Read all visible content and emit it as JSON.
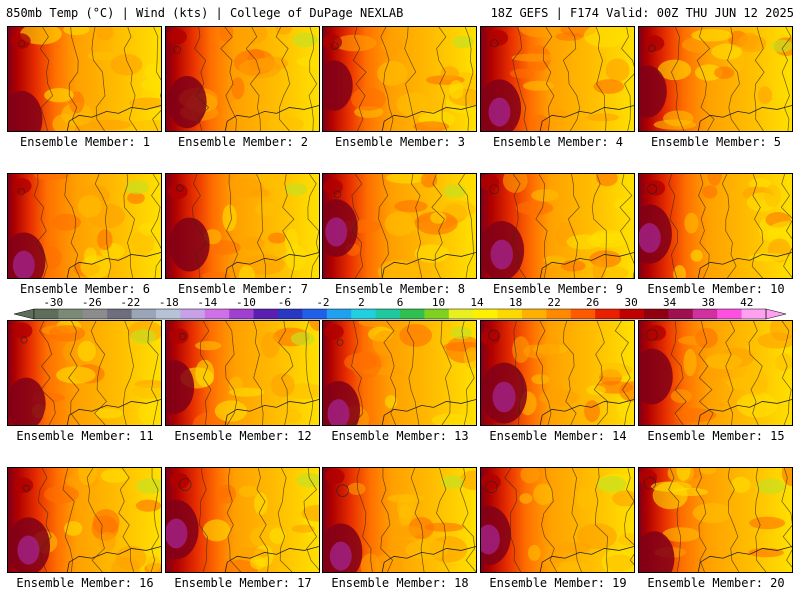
{
  "header": {
    "left": "850mb Temp (°C) | Wind (kts) | College of DuPage NEXLAB",
    "right": "18Z GEFS | F174 Valid: 00Z THU JUN 12 2025"
  },
  "members": [
    {
      "label": "Ensemble Member: 1",
      "west": 0.75,
      "hot": 0.8,
      "cool": 0.1
    },
    {
      "label": "Ensemble Member: 2",
      "west": 0.7,
      "hot": 0.7,
      "cool": 0.25
    },
    {
      "label": "Ensemble Member: 3",
      "west": 0.65,
      "hot": 0.65,
      "cool": 0.15
    },
    {
      "label": "Ensemble Member: 4",
      "west": 0.8,
      "hot": 0.85,
      "cool": 0.05
    },
    {
      "label": "Ensemble Member: 5",
      "west": 0.7,
      "hot": 0.7,
      "cool": 0.15
    },
    {
      "label": "Ensemble Member: 6",
      "west": 0.55,
      "hot": 0.85,
      "cool": 0.2
    },
    {
      "label": "Ensemble Member: 7",
      "west": 0.75,
      "hot": 0.75,
      "cool": 0.15
    },
    {
      "label": "Ensemble Member: 8",
      "west": 0.7,
      "hot": 0.85,
      "cool": 0.2
    },
    {
      "label": "Ensemble Member: 9",
      "west": 0.85,
      "hot": 0.9,
      "cool": 0.1
    },
    {
      "label": "Ensemble Member: 10",
      "west": 0.75,
      "hot": 0.9,
      "cool": 0.1
    },
    {
      "label": "Ensemble Member: 11",
      "west": 0.55,
      "hot": 0.7,
      "cool": 0.25
    },
    {
      "label": "Ensemble Member: 12",
      "west": 0.7,
      "hot": 0.75,
      "cool": 0.2
    },
    {
      "label": "Ensemble Member: 13",
      "west": 0.6,
      "hot": 0.85,
      "cool": 0.15
    },
    {
      "label": "Ensemble Member: 14",
      "west": 0.85,
      "hot": 0.95,
      "cool": 0.1
    },
    {
      "label": "Ensemble Member: 15",
      "west": 0.7,
      "hot": 0.8,
      "cool": 0.1
    },
    {
      "label": "Ensemble Member: 16",
      "west": 0.8,
      "hot": 0.85,
      "cool": 0.3
    },
    {
      "label": "Ensemble Member: 17",
      "west": 0.85,
      "hot": 0.9,
      "cool": 0.25
    },
    {
      "label": "Ensemble Member: 18",
      "west": 0.75,
      "hot": 0.85,
      "cool": 0.2
    },
    {
      "label": "Ensemble Member: 19",
      "west": 0.7,
      "hot": 0.9,
      "cool": 0.35
    },
    {
      "label": "Ensemble Member: 20",
      "west": 0.65,
      "hot": 0.75,
      "cool": 0.3
    }
  ],
  "colorbar": {
    "labels": [
      "-30",
      "-26",
      "-22",
      "-18",
      "-14",
      "-10",
      "-6",
      "-2",
      "2",
      "6",
      "10",
      "14",
      "18",
      "22",
      "26",
      "30",
      "34",
      "38",
      "42"
    ],
    "colors": [
      "#5e6e5a",
      "#7a8a74",
      "#8c8c8c",
      "#6e6e7e",
      "#9aa6b8",
      "#b6c2d6",
      "#c8a0e8",
      "#d070e8",
      "#a040d0",
      "#5a1fb0",
      "#2838c0",
      "#2060e8",
      "#20a0f0",
      "#20d0e0",
      "#20c8a0",
      "#30c050",
      "#80d020",
      "#e8f020",
      "#fff000",
      "#ffd800",
      "#ffb000",
      "#ff8a00",
      "#ff5a00",
      "#e82000",
      "#c00000",
      "#900010",
      "#a01050",
      "#d030a0",
      "#ff50e0",
      "#ffa0f0"
    ]
  },
  "palette": {
    "yellow": "#ffe100",
    "gold": "#ffc000",
    "orange": "#ffa000",
    "dark_orange": "#ff7000",
    "red": "#e83000",
    "dark_red": "#b00000",
    "maroon": "#800018",
    "magenta": "#a02080",
    "lime": "#c8e020"
  }
}
